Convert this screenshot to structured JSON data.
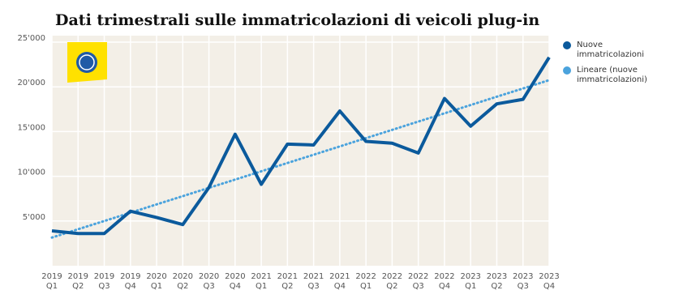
{
  "chart_data": {
    "type": "line",
    "title": "Dati trimestrali sulle immatricolazioni di veicoli plug-in",
    "categories": [
      [
        "2019",
        "Q1"
      ],
      [
        "2019",
        "Q2"
      ],
      [
        "2019",
        "Q3"
      ],
      [
        "2019",
        "Q4"
      ],
      [
        "2020",
        "Q1"
      ],
      [
        "2020",
        "Q2"
      ],
      [
        "2020",
        "Q3"
      ],
      [
        "2020",
        "Q4"
      ],
      [
        "2021",
        "Q1"
      ],
      [
        "2021",
        "Q2"
      ],
      [
        "2021",
        "Q3"
      ],
      [
        "2021",
        "Q4"
      ],
      [
        "2022",
        "Q1"
      ],
      [
        "2022",
        "Q2"
      ],
      [
        "2022",
        "Q3"
      ],
      [
        "2022",
        "Q4"
      ],
      [
        "2023",
        "Q1"
      ],
      [
        "2023",
        "Q2"
      ],
      [
        "2023",
        "Q3"
      ],
      [
        "2023",
        "Q4"
      ]
    ],
    "series": [
      {
        "name": "Nuove immatricolazioni",
        "color": "#0b5a9c",
        "style": "solid",
        "values": [
          3900,
          3600,
          3600,
          6100,
          5400,
          4600,
          8750,
          14700,
          9100,
          13600,
          13500,
          17300,
          13900,
          13700,
          12600,
          18700,
          15600,
          18100,
          18600,
          23300
        ]
      },
      {
        "name": "Lineare (nuove immatricolazioni)",
        "color": "#4ba3dd",
        "style": "dotted",
        "values": [
          3150,
          4080,
          5000,
          5930,
          6860,
          7780,
          8710,
          9630,
          10560,
          11490,
          12410,
          13340,
          14270,
          15190,
          16120,
          17040,
          17970,
          18900,
          19820,
          20750
        ]
      }
    ],
    "ylim": [
      0,
      25000
    ],
    "yticks": [
      {
        "value": 5000,
        "label": "5'000"
      },
      {
        "value": 10000,
        "label": "10'000"
      },
      {
        "value": 15000,
        "label": "15'000"
      },
      {
        "value": 20000,
        "label": "20'000"
      },
      {
        "value": 25000,
        "label": "25'000"
      }
    ],
    "grid": true,
    "legend": "right"
  }
}
